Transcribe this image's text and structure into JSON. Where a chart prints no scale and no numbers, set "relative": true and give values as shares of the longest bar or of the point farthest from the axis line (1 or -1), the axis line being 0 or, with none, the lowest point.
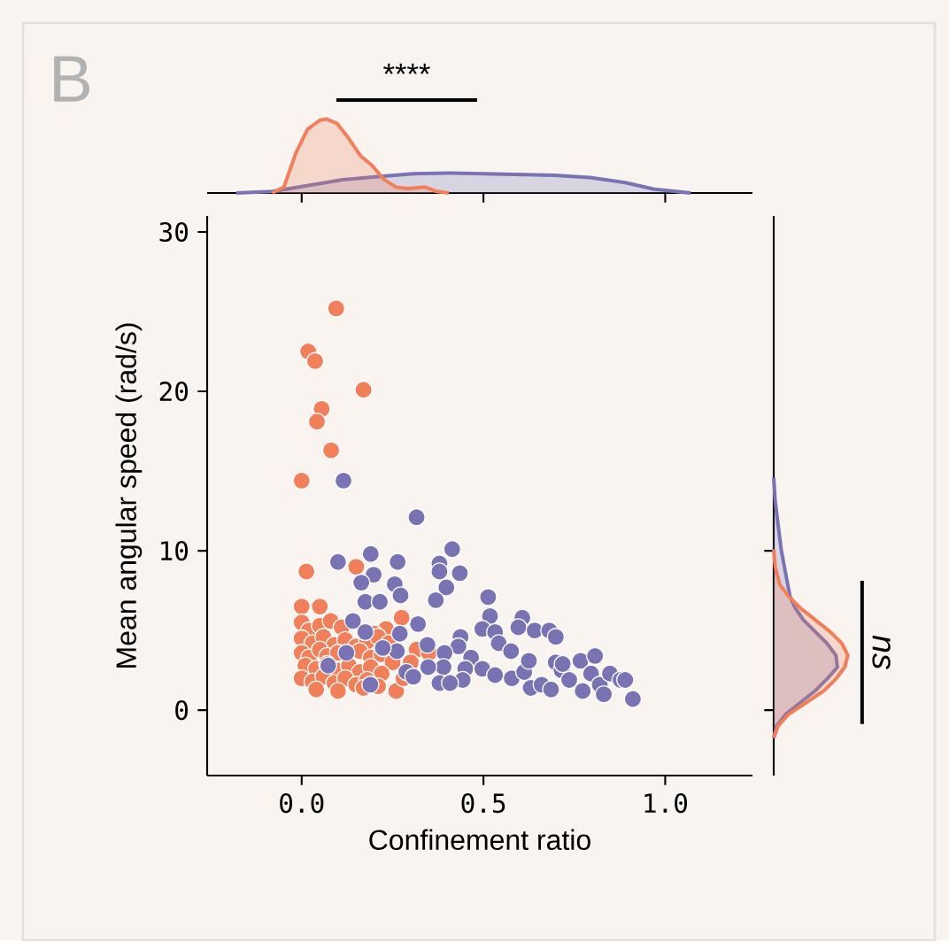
{
  "chart_data": [
    {
      "type": "scatter",
      "xlabel": "Confinement ratio",
      "ylabel": "Mean angular speed (rad/s)",
      "annotations": [
        "B"
      ],
      "marker": "circle",
      "xlim": [
        -0.26,
        1.24
      ],
      "ylim": [
        -4.1,
        31
      ],
      "xticks": [
        {
          "value": 0,
          "label": "0.0"
        },
        {
          "value": 0.5,
          "label": "0.5"
        },
        {
          "value": 1,
          "label": "1.0"
        }
      ],
      "yticks": [
        0,
        10,
        20,
        30
      ],
      "series": [
        {
          "color": "#f07f5a",
          "x": [
            0.095,
            0.018,
            0.037,
            0.17,
            0.055,
            0.042,
            0.081,
            0.0,
            0.013,
            0.15,
            0.275,
            0.232,
            0.316,
            0.35,
            0.0,
            0.05,
            0.0,
            0.02,
            0.05,
            0.08,
            0.11,
            0.14,
            0.17,
            0.2,
            0.0,
            0.03,
            0.06,
            0.09,
            0.12,
            0.15,
            0.18,
            0.21,
            0.24,
            0.0,
            0.02,
            0.05,
            0.07,
            0.1,
            0.16,
            0.19,
            0.22,
            0.25,
            0.01,
            0.04,
            0.07,
            0.1,
            0.13,
            0.16,
            0.19,
            0.22,
            0.0,
            0.03,
            0.06,
            0.09,
            0.12,
            0.15,
            0.18,
            0.21,
            0.04,
            0.1,
            0.17,
            0.26,
            0.28,
            0.3
          ],
          "values": [
            25.2,
            22.5,
            21.9,
            20.1,
            18.9,
            18.1,
            16.3,
            14.4,
            8.7,
            9.0,
            5.8,
            5.1,
            3.8,
            3.6,
            6.5,
            6.5,
            5.5,
            5.0,
            5.3,
            5.6,
            5.2,
            null,
            null,
            4.8,
            4.5,
            4.2,
            4.6,
            4.1,
            4.4,
            4.0,
            4.3,
            4.6,
            4.2,
            3.6,
            3.3,
            3.8,
            3.4,
            3.6,
            3.7,
            3.3,
            3.5,
            3.0,
            2.8,
            2.6,
            2.9,
            2.5,
            2.8,
            2.4,
            2.7,
            2.3,
            2.0,
            1.8,
            2.1,
            1.7,
            2.0,
            1.6,
            1.9,
            1.5,
            1.3,
            1.2,
            1.4,
            1.2,
            2.0,
            3.0
          ]
        },
        {
          "color": "#7a73b3",
          "x": [
            0.115,
            0.316,
            0.414,
            0.1,
            0.19,
            0.264,
            0.379,
            0.379,
            0.435,
            0.198,
            0.164,
            0.256,
            0.398,
            0.272,
            0.175,
            0.215,
            0.369,
            0.513,
            0.518,
            0.607,
            0.32,
            0.497,
            0.596,
            0.641,
            0.681,
            0.699,
            0.532,
            0.437,
            0.542,
            0.576,
            0.431,
            0.346,
            0.27,
            0.262,
            0.393,
            0.466,
            0.45,
            0.39,
            0.497,
            0.532,
            0.443,
            0.379,
            0.408,
            0.288,
            0.307,
            0.578,
            0.612,
            0.625,
            0.699,
            0.715,
            0.736,
            0.767,
            0.807,
            0.796,
            0.82,
            0.773,
            0.831,
            0.848,
            0.877,
            0.89,
            0.911,
            0.63,
            0.66,
            0.686,
            0.718,
            0.141,
            0.175,
            0.123,
            0.073,
            0.189,
            0.223,
            0.348
          ],
          "values": [
            14.4,
            12.1,
            10.1,
            9.3,
            9.8,
            9.3,
            9.2,
            8.7,
            8.6,
            8.5,
            8.0,
            7.9,
            7.7,
            7.2,
            6.8,
            6.8,
            6.9,
            7.1,
            5.9,
            5.8,
            5.4,
            5.1,
            5.2,
            5.0,
            5.0,
            4.6,
            4.9,
            4.6,
            4.2,
            3.7,
            4.0,
            4.1,
            4.8,
            3.7,
            3.6,
            3.3,
            2.6,
            2.7,
            2.6,
            2.2,
            1.9,
            1.7,
            1.7,
            2.4,
            2.1,
            2.0,
            2.4,
            3.1,
            3.0,
            2.5,
            1.9,
            3.1,
            3.4,
            2.3,
            1.6,
            1.2,
            1.0,
            2.3,
            1.9,
            1.9,
            0.7,
            1.4,
            1.6,
            1.3,
            2.9,
            5.6,
            4.9,
            3.6,
            2.8,
            1.6,
            3.9,
            2.7
          ]
        }
      ]
    },
    {
      "type": "area",
      "relative": true,
      "annotations": [
        "****"
      ],
      "tick_labels": false,
      "xlim": [
        -0.26,
        1.24
      ],
      "xticks": [
        0,
        0.5,
        1
      ],
      "series": [
        {
          "color": "#7a73b3",
          "x": [
            -0.18,
            -0.081,
            0.016,
            0.113,
            0.21,
            0.307,
            0.405,
            0.502,
            0.599,
            0.696,
            0.793,
            0.89,
            0.97,
            1.07
          ],
          "values": [
            0,
            0.02,
            0.1,
            0.18,
            0.22,
            0.26,
            0.27,
            0.26,
            0.25,
            0.24,
            0.21,
            0.14,
            0.05,
            0
          ]
        },
        {
          "color": "#f07f5a",
          "x": [
            -0.081,
            -0.049,
            -0.016,
            0.016,
            0.049,
            0.068,
            0.097,
            0.129,
            0.162,
            0.194,
            0.227,
            0.259,
            0.291,
            0.34,
            0.372,
            0.405
          ],
          "values": [
            0,
            0.08,
            0.54,
            0.86,
            0.98,
            1,
            0.94,
            0.74,
            0.5,
            0.37,
            0.18,
            0.08,
            0.06,
            0.08,
            0.02,
            0
          ]
        }
      ]
    },
    {
      "type": "area",
      "relative": true,
      "orientation": "horizontal",
      "annotations": [
        "ns"
      ],
      "tick_labels": false,
      "ylim": [
        -4.1,
        31
      ],
      "yticks": [
        0,
        10
      ],
      "series": [
        {
          "color": "#7a73b3",
          "x": [
            -1.74,
            -0.99,
            -0.26,
            0.48,
            1.22,
            1.96,
            2.7,
            3.44,
            4.19,
            4.93,
            5.67,
            6.41,
            7.15,
            8.6,
            10.1,
            11.6,
            13.1,
            14.6
          ],
          "values": [
            0,
            0.04,
            0.16,
            0.36,
            0.56,
            0.72,
            0.86,
            0.84,
            0.72,
            0.56,
            0.4,
            0.29,
            0.22,
            0.16,
            0.1,
            0.06,
            0.02,
            0
          ]
        },
        {
          "color": "#f07f5a",
          "x": [
            -1.74,
            -0.99,
            -0.26,
            0.48,
            1.22,
            1.96,
            2.7,
            3.44,
            4.19,
            4.93,
            5.67,
            6.41,
            7.15,
            7.89,
            9.0,
            10.1
          ],
          "values": [
            0,
            0.06,
            0.2,
            0.44,
            0.68,
            0.84,
            0.96,
            1,
            0.92,
            0.76,
            0.56,
            0.36,
            0.2,
            0.08,
            0.02,
            0
          ]
        }
      ]
    }
  ]
}
